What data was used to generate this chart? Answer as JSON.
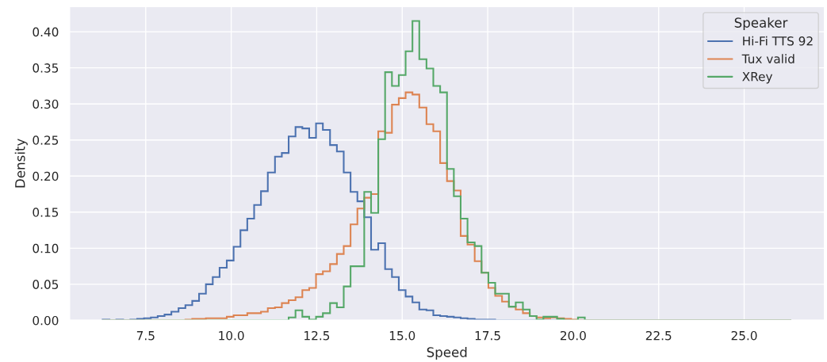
{
  "chart_data": {
    "type": "histogram",
    "xlabel": "Speed",
    "ylabel": "Density",
    "legend_title": "Speaker",
    "bins": [
      6.24,
      6.44,
      6.64,
      6.84,
      7.05,
      7.25,
      7.45,
      7.65,
      7.85,
      8.05,
      8.25,
      8.46,
      8.66,
      8.86,
      9.06,
      9.26,
      9.46,
      9.66,
      9.87,
      10.07,
      10.27,
      10.47,
      10.67,
      10.87,
      11.07,
      11.28,
      11.48,
      11.68,
      11.88,
      12.08,
      12.28,
      12.48,
      12.68,
      12.89,
      13.09,
      13.29,
      13.49,
      13.69,
      13.89,
      14.09,
      14.3,
      14.5,
      14.7,
      14.9,
      15.1,
      15.3,
      15.5,
      15.71,
      15.91,
      16.11,
      16.31,
      16.51,
      16.71,
      16.91,
      17.12,
      17.32,
      17.52,
      17.72,
      17.92,
      18.12,
      18.32,
      18.53,
      18.73,
      18.93,
      19.13,
      19.33,
      19.53,
      19.73,
      19.94,
      20.14,
      20.34,
      20.54,
      20.74,
      20.94,
      21.14,
      21.35,
      21.55,
      21.75,
      21.95,
      22.15,
      22.35,
      22.55,
      22.75,
      22.96,
      23.16,
      23.36,
      23.56,
      23.76,
      23.96,
      24.16,
      24.37,
      24.57,
      24.77,
      24.97,
      25.17,
      25.37,
      25.57,
      25.78,
      25.98,
      26.18,
      26.38
    ],
    "series": [
      {
        "name": "Hi-Fi TTS 92",
        "color": "#4c72b0",
        "values": [
          0.001,
          0,
          0.001,
          0,
          0.001,
          0.002,
          0.003,
          0.004,
          0.006,
          0.008,
          0.012,
          0.017,
          0.021,
          0.027,
          0.037,
          0.05,
          0.06,
          0.073,
          0.083,
          0.102,
          0.125,
          0.141,
          0.16,
          0.179,
          0.205,
          0.227,
          0.232,
          0.255,
          0.268,
          0.266,
          0.253,
          0.273,
          0.264,
          0.243,
          0.234,
          0.205,
          0.178,
          0.165,
          0.143,
          0.098,
          0.107,
          0.071,
          0.06,
          0.042,
          0.033,
          0.025,
          0.015,
          0.014,
          0.007,
          0.006,
          0.005,
          0.004,
          0.003,
          0.002,
          0.001,
          0.001,
          0.001,
          0,
          0,
          0,
          0,
          0,
          0,
          0,
          0,
          0,
          0,
          0,
          0,
          0,
          0,
          0,
          0,
          0,
          0,
          0,
          0,
          0,
          0,
          0,
          0,
          0,
          0,
          0,
          0,
          0,
          0,
          0,
          0,
          0,
          0,
          0,
          0,
          0,
          0,
          0,
          0,
          0,
          0,
          0
        ]
      },
      {
        "name": "Tux valid",
        "color": "#dd8452",
        "values": [
          0,
          0,
          0,
          0,
          0,
          0,
          0,
          0,
          0,
          0,
          0,
          0,
          0.001,
          0.002,
          0.002,
          0.003,
          0.003,
          0.003,
          0.005,
          0.007,
          0.007,
          0.01,
          0.01,
          0.012,
          0.017,
          0.018,
          0.024,
          0.028,
          0.032,
          0.042,
          0.045,
          0.064,
          0.068,
          0.078,
          0.092,
          0.103,
          0.133,
          0.155,
          0.17,
          0.175,
          0.262,
          0.26,
          0.299,
          0.308,
          0.316,
          0.313,
          0.295,
          0.272,
          0.262,
          0.218,
          0.193,
          0.18,
          0.117,
          0.105,
          0.082,
          0.066,
          0.045,
          0.034,
          0.026,
          0.019,
          0.015,
          0.01,
          0.006,
          0.004,
          0.003,
          0.004,
          0.003,
          0.002,
          0.001,
          0,
          0,
          0,
          0,
          0,
          0,
          0,
          0,
          0,
          0,
          0,
          0,
          0,
          0,
          0,
          0,
          0,
          0,
          0,
          0,
          0,
          0,
          0,
          0,
          0,
          0,
          0,
          0,
          0,
          0,
          0
        ]
      },
      {
        "name": "XRey",
        "color": "#55a868",
        "values": [
          0,
          0,
          0,
          0,
          0,
          0,
          0,
          0,
          0,
          0,
          0,
          0,
          0,
          0,
          0,
          0,
          0,
          0,
          0,
          0,
          0,
          0,
          0,
          0,
          0,
          0,
          0,
          0.004,
          0.014,
          0.005,
          0.001,
          0.005,
          0.01,
          0.024,
          0.018,
          0.047,
          0.075,
          0.075,
          0.178,
          0.149,
          0.251,
          0.344,
          0.325,
          0.34,
          0.373,
          0.415,
          0.362,
          0.349,
          0.325,
          0.316,
          0.21,
          0.172,
          0.141,
          0.108,
          0.103,
          0.066,
          0.052,
          0.037,
          0.037,
          0.019,
          0.025,
          0.015,
          0.006,
          0.001,
          0.005,
          0.005,
          0.002,
          0,
          0,
          0.004,
          0,
          0,
          0,
          0,
          0,
          0,
          0,
          0,
          0,
          0,
          0,
          0,
          0,
          0,
          0,
          0,
          0,
          0,
          0,
          0,
          0,
          0,
          0,
          0,
          0,
          0,
          0,
          0,
          0,
          0
        ]
      }
    ],
    "xlim": [
      5.27,
      27.35
    ],
    "xticks": [
      {
        "value": 7.5,
        "label": "7.5"
      },
      {
        "value": 10,
        "label": "10.0"
      },
      {
        "value": 12.5,
        "label": "12.5"
      },
      {
        "value": 15,
        "label": "15.0"
      },
      {
        "value": 17.5,
        "label": "17.5"
      },
      {
        "value": 20,
        "label": "20.0"
      },
      {
        "value": 22.5,
        "label": "22.5"
      },
      {
        "value": 25,
        "label": "25.0"
      }
    ],
    "ylim": [
      0,
      0.435
    ],
    "yticks": [
      {
        "value": 0,
        "label": "0.00"
      },
      {
        "value": 0.05,
        "label": "0.05"
      },
      {
        "value": 0.1,
        "label": "0.10"
      },
      {
        "value": 0.15,
        "label": "0.15"
      },
      {
        "value": 0.2,
        "label": "0.20"
      },
      {
        "value": 0.25,
        "label": "0.25"
      },
      {
        "value": 0.3,
        "label": "0.30"
      },
      {
        "value": 0.35,
        "label": "0.35"
      },
      {
        "value": 0.4,
        "label": "0.40"
      }
    ],
    "grid": true,
    "legend": "top right"
  }
}
